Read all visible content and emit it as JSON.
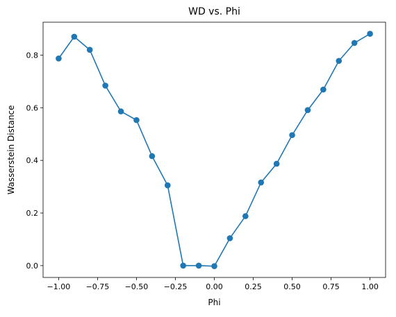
{
  "chart_data": {
    "type": "line",
    "title": "WD vs. Phi",
    "xlabel": "Phi",
    "ylabel": "Wasserstein Distance",
    "xlim": [
      -1.1,
      1.1
    ],
    "ylim": [
      -0.045,
      0.925
    ],
    "x_ticks": [
      -1.0,
      -0.75,
      -0.5,
      -0.25,
      0.0,
      0.25,
      0.5,
      0.75,
      1.0
    ],
    "x_tick_labels": [
      "−1.00",
      "−0.75",
      "−0.50",
      "−0.25",
      "0.00",
      "0.25",
      "0.50",
      "0.75",
      "1.00"
    ],
    "y_ticks": [
      0.0,
      0.2,
      0.4,
      0.6,
      0.8
    ],
    "y_tick_labels": [
      "0.0",
      "0.2",
      "0.4",
      "0.6",
      "0.8"
    ],
    "grid": false,
    "legend": false,
    "series": [
      {
        "color": "#1f77b4",
        "marker": "circle",
        "x": [
          -1.0,
          -0.9,
          -0.8,
          -0.7,
          -0.6,
          -0.5,
          -0.4,
          -0.3,
          -0.2,
          -0.1,
          0.0,
          0.1,
          0.2,
          0.3,
          0.4,
          0.5,
          0.6,
          0.7,
          0.8,
          0.9,
          1.0
        ],
        "y": [
          0.787,
          0.87,
          0.82,
          0.684,
          0.586,
          0.553,
          0.416,
          0.305,
          0.0,
          0.0,
          -0.002,
          0.104,
          0.188,
          0.316,
          0.387,
          0.496,
          0.591,
          0.669,
          0.778,
          0.846,
          0.881
        ]
      }
    ]
  }
}
